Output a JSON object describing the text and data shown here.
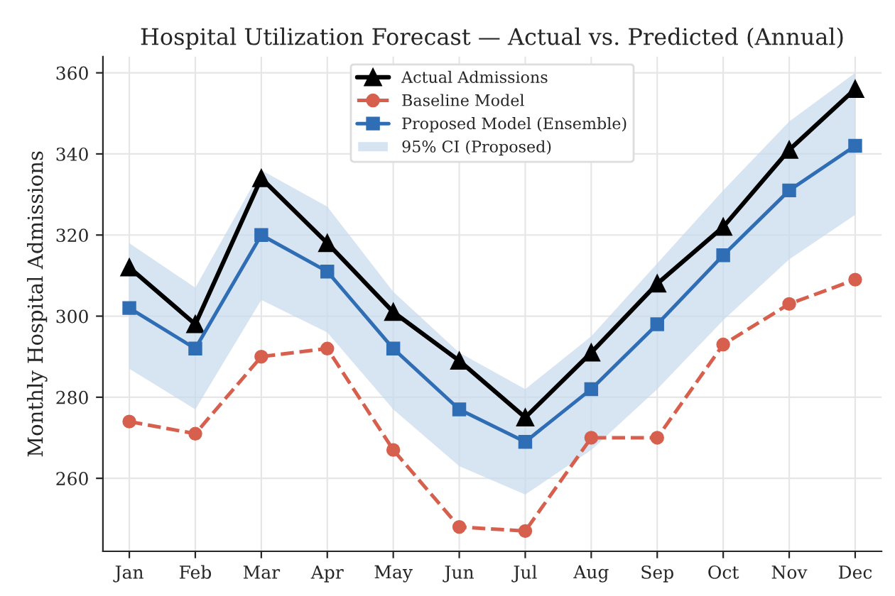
{
  "chart_data": {
    "type": "line",
    "title": "Hospital Utilization Forecast — Actual vs. Predicted (Annual)",
    "ylabel": "Monthly Hospital Admissions",
    "categories": [
      "Jan",
      "Feb",
      "Mar",
      "Apr",
      "May",
      "Jun",
      "Jul",
      "Aug",
      "Sep",
      "Oct",
      "Nov",
      "Dec"
    ],
    "series": [
      {
        "name": "Actual Admissions",
        "color": "#000000",
        "marker": "triangle",
        "line_style": "solid",
        "values": [
          312,
          298,
          334,
          318,
          301,
          289,
          275,
          291,
          308,
          322,
          341,
          356
        ]
      },
      {
        "name": "Baseline Model",
        "color": "#d6604d",
        "marker": "circle",
        "line_style": "dashed",
        "values": [
          274,
          271,
          290,
          292,
          267,
          248,
          247,
          270,
          270,
          293,
          303,
          309
        ]
      },
      {
        "name": "Proposed Model (Ensemble)",
        "color": "#2f6db5",
        "marker": "square",
        "line_style": "solid",
        "values": [
          302,
          292,
          320,
          311,
          292,
          277,
          269,
          282,
          298,
          315,
          331,
          342
        ]
      },
      {
        "name": "95% CI (Proposed)",
        "type": "area",
        "color": "#c6d8ec",
        "values": [
          null,
          null,
          null,
          null,
          null,
          null,
          null,
          null,
          null,
          null,
          null,
          null
        ],
        "lower": [
          287,
          277,
          304,
          296,
          277,
          263,
          256,
          267,
          282,
          299,
          314,
          325
        ],
        "upper": [
          318,
          307,
          336,
          327,
          306,
          291,
          282,
          295,
          313,
          331,
          348,
          360
        ]
      }
    ],
    "ylim": [
      242,
      364
    ],
    "yticks": [
      260,
      280,
      300,
      320,
      340,
      360
    ],
    "grid": true,
    "legend": "top"
  }
}
